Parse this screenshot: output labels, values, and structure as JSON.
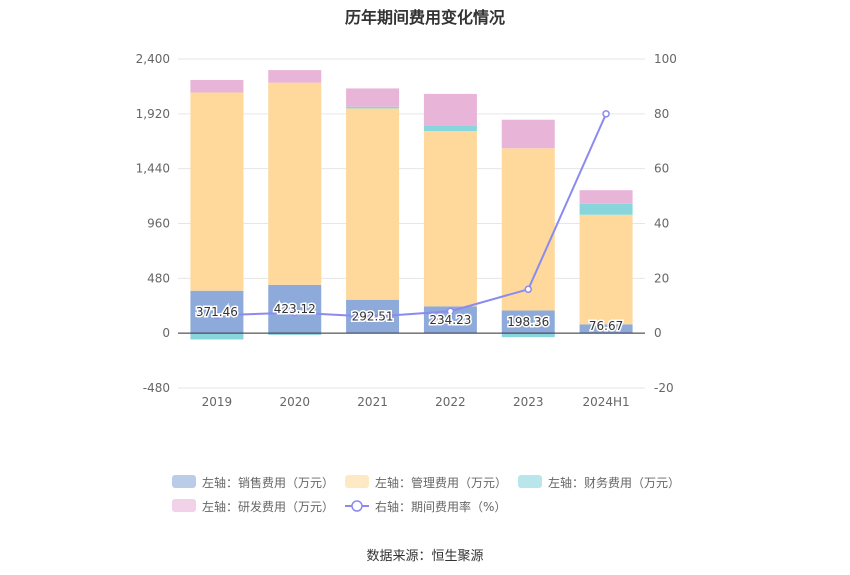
{
  "title": "历年期间费用变化情况",
  "source": "数据来源：恒生聚源",
  "chart_data": {
    "type": "bar",
    "stacked": true,
    "categories": [
      "2019",
      "2020",
      "2021",
      "2022",
      "2023",
      "2024H1"
    ],
    "y_left": {
      "min": -480,
      "max": 2400,
      "ticks": [
        "2,400",
        "1,920",
        "1,440",
        "960",
        "480",
        "0",
        "-480"
      ],
      "tick_values": [
        2400,
        1920,
        1440,
        960,
        480,
        0,
        -480
      ]
    },
    "y_right": {
      "min": -20,
      "max": 100,
      "ticks": [
        "100",
        "80",
        "60",
        "40",
        "20",
        "0",
        "-20"
      ],
      "tick_values": [
        100,
        80,
        60,
        40,
        20,
        0,
        -20
      ]
    },
    "series": [
      {
        "name": "左轴：销售费用（万元）",
        "axis": "left",
        "kind": "bar",
        "color": "#8eaadb",
        "values": [
          371.46,
          423.12,
          292.51,
          234.23,
          198.36,
          76.67
        ],
        "labels": [
          "371.46",
          "423.12",
          "292.51",
          "234.23",
          "198.36",
          "76.67"
        ]
      },
      {
        "name": "左轴：管理费用（万元）",
        "axis": "left",
        "kind": "bar",
        "color": "#ffd89c",
        "values": [
          1735,
          1770,
          1675,
          1535,
          1420,
          960
        ]
      },
      {
        "name": "左轴：财务费用（万元）",
        "axis": "left",
        "kind": "bar",
        "color": "#88d6dc",
        "values": [
          -55,
          -15,
          15,
          50,
          -35,
          95
        ]
      },
      {
        "name": "左轴：研发费用（万元）",
        "axis": "left",
        "kind": "bar",
        "color": "#e8b4d8",
        "values": [
          110,
          110,
          160,
          275,
          250,
          120
        ]
      },
      {
        "name": "右轴：期间费用率（%）",
        "axis": "right",
        "kind": "line",
        "color": "#8b8bef",
        "values": [
          6.5,
          7.5,
          6.0,
          8.0,
          16.0,
          80.0
        ]
      }
    ],
    "legend_position": "bottom",
    "grid": true
  }
}
